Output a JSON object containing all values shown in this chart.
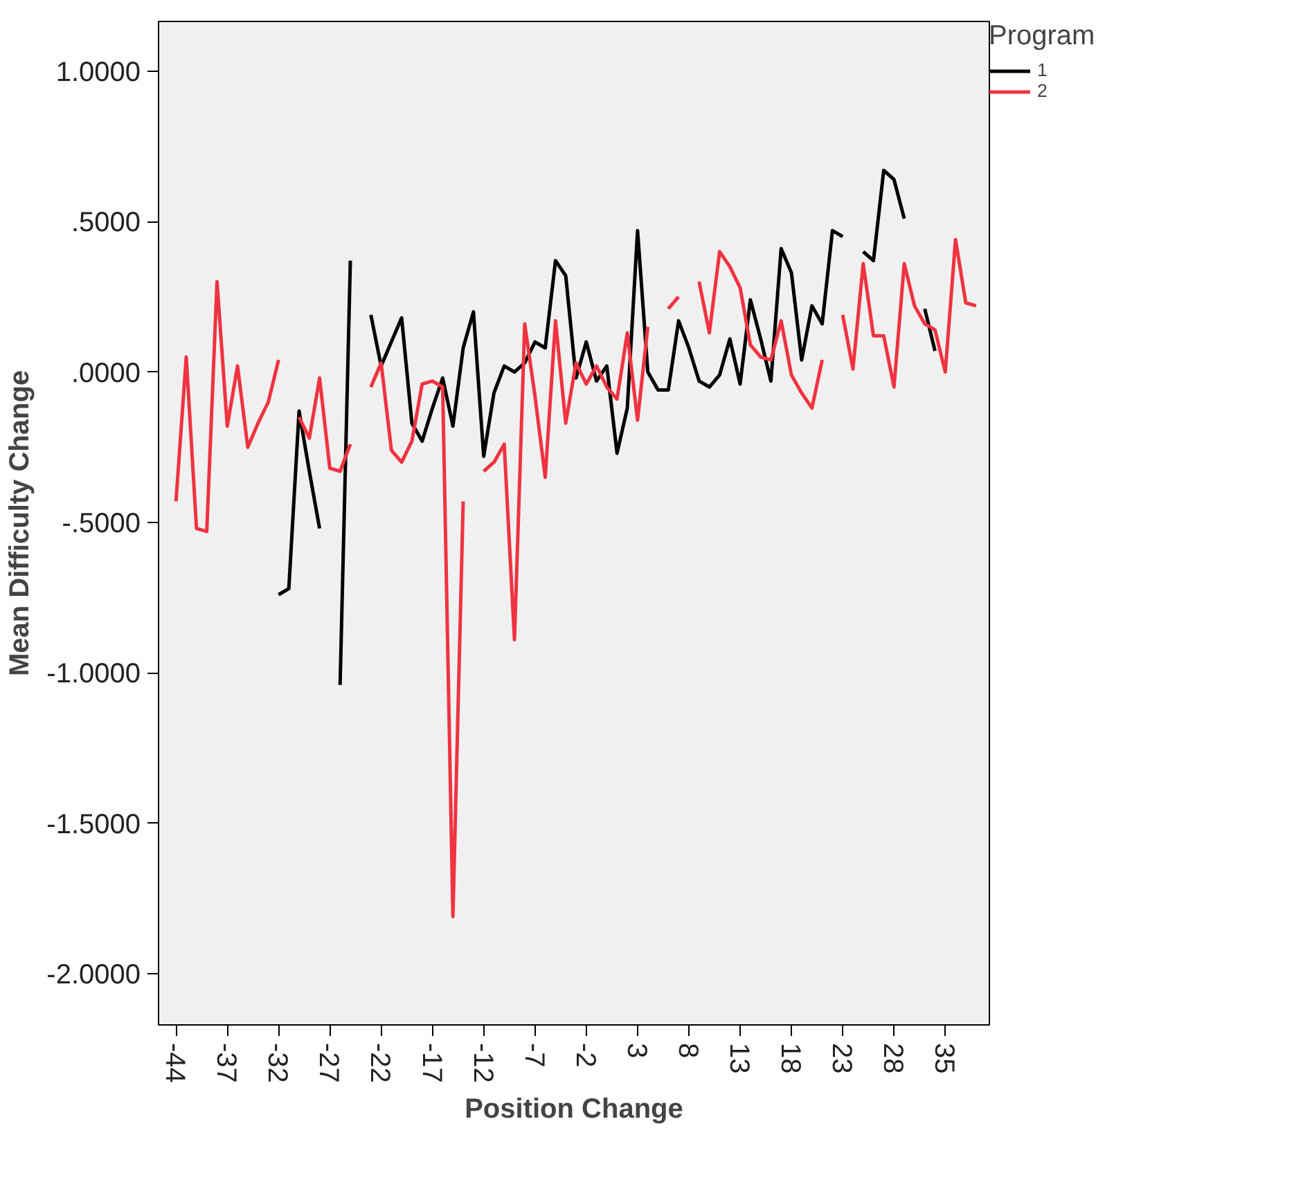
{
  "chart_data": {
    "type": "line",
    "xlabel": "Position Change",
    "ylabel": "Mean Difficulty Change",
    "legend_title": "Program",
    "categories": [
      "-44",
      null,
      null,
      null,
      null,
      "-37",
      null,
      null,
      null,
      null,
      "-32",
      null,
      null,
      null,
      null,
      "-27",
      null,
      null,
      null,
      null,
      "-22",
      null,
      null,
      null,
      null,
      "-17",
      null,
      null,
      null,
      null,
      "-12",
      null,
      null,
      null,
      null,
      "-7",
      null,
      null,
      null,
      null,
      "-2",
      null,
      null,
      null,
      null,
      "3",
      null,
      null,
      null,
      null,
      "8",
      null,
      null,
      null,
      null,
      "13",
      null,
      null,
      null,
      null,
      "18",
      null,
      null,
      null,
      null,
      "23",
      null,
      null,
      null,
      null,
      "28",
      null,
      null,
      null,
      null,
      "35",
      null,
      null,
      null
    ],
    "ylim": [
      -2.17,
      1.165
    ],
    "yticks": [
      {
        "value": -2,
        "label": "-2.0000"
      },
      {
        "value": -1.5,
        "label": "-1.5000"
      },
      {
        "value": -1,
        "label": "-1.0000"
      },
      {
        "value": -0.5,
        "label": "-.5000"
      },
      {
        "value": 0,
        "label": ".0000"
      },
      {
        "value": 0.5,
        "label": ".5000"
      },
      {
        "value": 1,
        "label": "1.0000"
      }
    ],
    "grid": false,
    "legend": "top right",
    "series": [
      {
        "name": "1",
        "color": "#000000",
        "values": [
          null,
          null,
          null,
          null,
          null,
          null,
          null,
          null,
          null,
          null,
          -0.74,
          -0.72,
          -0.13,
          -0.33,
          -0.52,
          null,
          -1.04,
          0.37,
          null,
          0.19,
          0.02,
          0.1,
          0.18,
          -0.17,
          -0.23,
          -0.12,
          -0.02,
          -0.18,
          0.08,
          0.2,
          -0.28,
          -0.07,
          0.02,
          0.0,
          0.03,
          0.1,
          0.08,
          0.37,
          0.32,
          -0.02,
          0.1,
          -0.03,
          0.02,
          -0.27,
          -0.12,
          0.47,
          0.0,
          -0.06,
          -0.06,
          0.17,
          0.08,
          -0.03,
          -0.05,
          -0.01,
          0.11,
          -0.04,
          0.24,
          0.11,
          -0.03,
          0.41,
          0.33,
          0.04,
          0.22,
          0.16,
          0.47,
          0.45,
          null,
          0.4,
          0.37,
          0.67,
          0.64,
          0.51,
          null,
          0.21,
          0.07,
          null,
          null,
          null,
          null
        ]
      },
      {
        "name": "2",
        "color": "#ef3340",
        "values": [
          -0.43,
          0.05,
          -0.52,
          -0.53,
          0.3,
          -0.18,
          0.02,
          -0.25,
          -0.17,
          -0.1,
          0.04,
          null,
          -0.15,
          -0.22,
          -0.02,
          -0.32,
          -0.33,
          -0.24,
          null,
          -0.05,
          0.03,
          -0.26,
          -0.3,
          -0.23,
          -0.04,
          -0.03,
          -0.05,
          -1.81,
          -0.43,
          null,
          -0.33,
          -0.3,
          -0.24,
          -0.89,
          0.16,
          -0.08,
          -0.35,
          0.17,
          -0.17,
          0.03,
          -0.04,
          0.02,
          -0.05,
          -0.09,
          0.13,
          -0.16,
          0.15,
          null,
          0.21,
          0.25,
          null,
          0.3,
          0.13,
          0.4,
          0.35,
          0.28,
          0.09,
          0.05,
          0.04,
          0.17,
          -0.01,
          -0.07,
          -0.12,
          0.04,
          null,
          0.19,
          0.01,
          0.36,
          0.12,
          0.12,
          -0.05,
          0.36,
          0.22,
          0.16,
          0.14,
          0.0,
          0.44,
          0.23,
          0.22
        ]
      }
    ]
  }
}
